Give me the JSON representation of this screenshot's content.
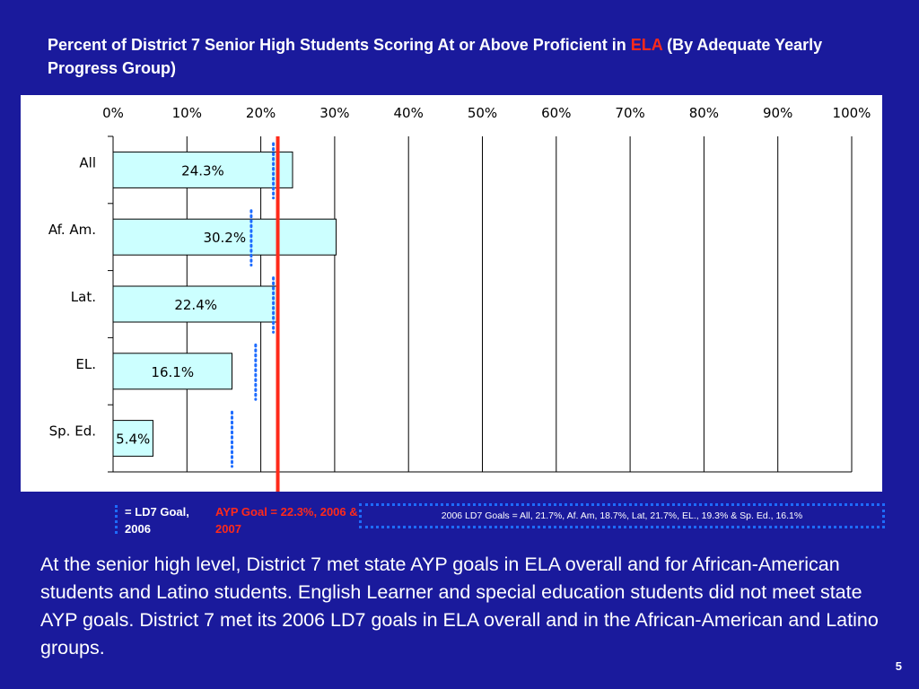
{
  "slide": {
    "title_part1": "Percent of District 7 Senior High Students Scoring At or Above Proficient in ",
    "title_accent": "ELA",
    "title_part2": " (By Adequate Yearly Progress Group)",
    "legend_ld7": "= LD7 Goal, 2006",
    "legend_ayp": "AYP Goal = 22.3%, 2006 & 2007",
    "legend_2006_goals": "2006 LD7 Goals = All, 21.7%, Af. Am, 18.7%, Lat, 21.7%, EL., 19.3% & Sp. Ed., 16.1%",
    "body_text": "At the senior high level, District 7 met state AYP goals in ELA overall and for African-American students and Latino students.  English Learner and special education students did not meet state AYP goals. District 7 met its 2006 LD7 goals in ELA overall and in the African-American and Latino groups.",
    "page_number": "5"
  },
  "chart_data": {
    "type": "bar",
    "orientation": "horizontal",
    "categories": [
      "All",
      "Af. Am.",
      "Lat.",
      "EL.",
      "Sp. Ed."
    ],
    "values": [
      24.3,
      30.2,
      22.4,
      16.1,
      5.4
    ],
    "value_labels": [
      "24.3%",
      "30.2%",
      "22.4%",
      "16.1%",
      "5.4%"
    ],
    "ld7_goals": [
      21.7,
      18.7,
      21.7,
      19.3,
      16.1
    ],
    "ayp_goal": 22.3,
    "x_ticks": [
      0,
      10,
      20,
      30,
      40,
      50,
      60,
      70,
      80,
      90,
      100
    ],
    "x_tick_labels": [
      "0%",
      "10%",
      "20%",
      "30%",
      "40%",
      "50%",
      "60%",
      "70%",
      "80%",
      "90%",
      "100%"
    ],
    "xlim": [
      0,
      100
    ],
    "x_axis_position": "top",
    "grid": true,
    "colors": {
      "bar_fill": "#ccffff",
      "bar_stroke": "#000000",
      "ayp_line": "#ff2a1a",
      "ld7_dots": "#1e6cff",
      "background": "#1a1a9c"
    }
  }
}
